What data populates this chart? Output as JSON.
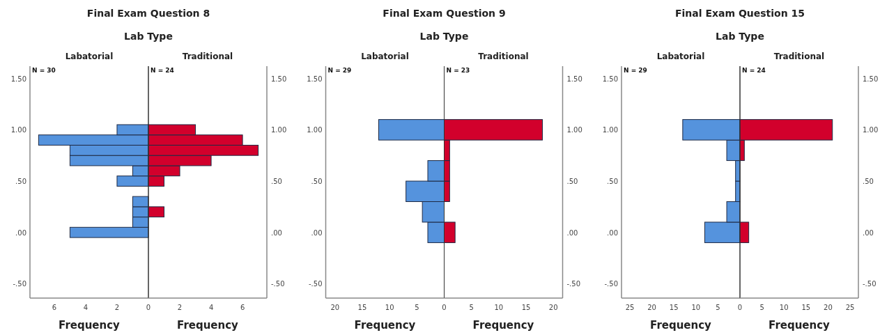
{
  "chart_data": [
    {
      "type": "histogram",
      "orientation": "horizontal",
      "title": "Final Exam Question 8",
      "subtitle": "Lab Type",
      "xlabel": "Frequency",
      "annotations": [
        "N = 30"
      ],
      "bins": [
        -0.05,
        0.05,
        0.15,
        0.25,
        0.35,
        0.45,
        0.55,
        0.65,
        0.75,
        0.85,
        0.95,
        1.05
      ],
      "series": [
        {
          "name": "Labatorial",
          "color": "#5593dd",
          "values": [
            5,
            1,
            1,
            1,
            0,
            2,
            1,
            5,
            5,
            7,
            2
          ]
        }
      ],
      "xlim": [
        7.55,
        0
      ],
      "xticks": [
        6,
        4,
        2
      ],
      "ylim": [
        -0.64,
        1.62
      ],
      "yticks": [
        {
          "value": -0.5,
          "label": "-.50"
        },
        {
          "value": 0,
          "label": ".00"
        },
        {
          "value": 0.5,
          "label": ".50"
        },
        {
          "value": 1,
          "label": "1.00"
        },
        {
          "value": 1.5,
          "label": "1.50"
        }
      ]
    },
    {
      "type": "histogram",
      "orientation": "horizontal",
      "xlabel": "Frequency",
      "annotations": [
        "N = 24"
      ],
      "bins": [
        -0.05,
        0.05,
        0.15,
        0.25,
        0.35,
        0.45,
        0.55,
        0.65,
        0.75,
        0.85,
        0.95,
        1.05
      ],
      "series": [
        {
          "name": "Traditional",
          "color": "#d2002c",
          "values": [
            0,
            0,
            1,
            0,
            0,
            1,
            2,
            4,
            7,
            6,
            3
          ]
        }
      ],
      "xlim": [
        0,
        7.55
      ],
      "xticks": [
        0,
        2,
        4,
        6
      ],
      "ylim": [
        -0.64,
        1.62
      ],
      "yticks": [
        {
          "value": -0.5,
          "label": "-.50"
        },
        {
          "value": 0,
          "label": ".00"
        },
        {
          "value": 0.5,
          "label": ".50"
        },
        {
          "value": 1,
          "label": "1.00"
        },
        {
          "value": 1.5,
          "label": "1.50"
        }
      ]
    },
    {
      "type": "histogram",
      "orientation": "horizontal",
      "title": "Final Exam Question 9",
      "subtitle": "Lab Type",
      "xlabel": "Frequency",
      "annotations": [
        "N = 29"
      ],
      "bins": [
        -0.1,
        0.1,
        0.3,
        0.5,
        0.7,
        0.9,
        1.1
      ],
      "series": [
        {
          "name": "Labatorial",
          "color": "#5593dd",
          "values": [
            3,
            4,
            7,
            3,
            0,
            12
          ]
        }
      ],
      "xlim": [
        21.7,
        0
      ],
      "xticks": [
        20,
        15,
        10,
        5
      ],
      "ylim": [
        -0.64,
        1.62
      ],
      "yticks": [
        {
          "value": -0.5,
          "label": "-.50"
        },
        {
          "value": 0,
          "label": ".00"
        },
        {
          "value": 0.5,
          "label": ".50"
        },
        {
          "value": 1,
          "label": "1.00"
        },
        {
          "value": 1.5,
          "label": "1.50"
        }
      ]
    },
    {
      "type": "histogram",
      "orientation": "horizontal",
      "xlabel": "Frequency",
      "annotations": [
        "N = 23"
      ],
      "bins": [
        -0.1,
        0.1,
        0.3,
        0.5,
        0.7,
        0.9,
        1.1
      ],
      "series": [
        {
          "name": "Traditional",
          "color": "#d2002c",
          "values": [
            2,
            0,
            1,
            1,
            1,
            18
          ]
        }
      ],
      "xlim": [
        0,
        21.7
      ],
      "xticks": [
        0,
        5,
        10,
        15,
        20
      ],
      "ylim": [
        -0.64,
        1.62
      ],
      "yticks": [
        {
          "value": -0.5,
          "label": "-.50"
        },
        {
          "value": 0,
          "label": ".00"
        },
        {
          "value": 0.5,
          "label": ".50"
        },
        {
          "value": 1,
          "label": "1.00"
        },
        {
          "value": 1.5,
          "label": "1.50"
        }
      ]
    },
    {
      "type": "histogram",
      "orientation": "horizontal",
      "title": "Final Exam Question 15",
      "subtitle": "Lab Type",
      "xlabel": "Frequency",
      "annotations": [
        "N = 29"
      ],
      "bins": [
        -0.1,
        0.1,
        0.3,
        0.5,
        0.7,
        0.9,
        1.1
      ],
      "series": [
        {
          "name": "Labatorial",
          "color": "#5593dd",
          "values": [
            8,
            3,
            1,
            1,
            3,
            13
          ]
        }
      ],
      "xlim": [
        26.9,
        0
      ],
      "xticks": [
        25,
        20,
        15,
        10,
        5
      ],
      "ylim": [
        -0.64,
        1.62
      ],
      "yticks": [
        {
          "value": -0.5,
          "label": "-.50"
        },
        {
          "value": 0,
          "label": ".00"
        },
        {
          "value": 0.5,
          "label": ".50"
        },
        {
          "value": 1,
          "label": "1.00"
        },
        {
          "value": 1.5,
          "label": "1.50"
        }
      ]
    },
    {
      "type": "histogram",
      "orientation": "horizontal",
      "xlabel": "Frequency",
      "annotations": [
        "N = 24"
      ],
      "bins": [
        -0.1,
        0.1,
        0.3,
        0.5,
        0.7,
        0.9,
        1.1
      ],
      "series": [
        {
          "name": "Traditional",
          "color": "#d2002c",
          "values": [
            2,
            0,
            0,
            0,
            1,
            21
          ]
        }
      ],
      "xlim": [
        0,
        26.9
      ],
      "xticks": [
        0,
        5,
        10,
        15,
        20,
        25
      ],
      "ylim": [
        -0.64,
        1.62
      ],
      "yticks": [
        {
          "value": -0.5,
          "label": "-.50"
        },
        {
          "value": 0,
          "label": ".00"
        },
        {
          "value": 0.5,
          "label": ".50"
        },
        {
          "value": 1,
          "label": "1.00"
        },
        {
          "value": 1.5,
          "label": "1.50"
        }
      ]
    }
  ]
}
